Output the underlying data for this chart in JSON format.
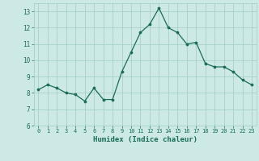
{
  "x": [
    0,
    1,
    2,
    3,
    4,
    5,
    6,
    7,
    8,
    9,
    10,
    11,
    12,
    13,
    14,
    15,
    16,
    17,
    18,
    19,
    20,
    21,
    22,
    23
  ],
  "y": [
    8.2,
    8.5,
    8.3,
    8.0,
    7.9,
    7.5,
    8.3,
    7.6,
    7.6,
    9.3,
    10.5,
    11.7,
    12.2,
    13.2,
    12.0,
    11.7,
    11.0,
    11.1,
    9.8,
    9.6,
    9.6,
    9.3,
    8.8,
    8.5
  ],
  "xlabel": "Humidex (Indice chaleur)",
  "xlim": [
    -0.5,
    23.5
  ],
  "ylim": [
    6,
    13.5
  ],
  "yticks": [
    6,
    7,
    8,
    9,
    10,
    11,
    12,
    13
  ],
  "xticks": [
    0,
    1,
    2,
    3,
    4,
    5,
    6,
    7,
    8,
    9,
    10,
    11,
    12,
    13,
    14,
    15,
    16,
    17,
    18,
    19,
    20,
    21,
    22,
    23
  ],
  "line_color": "#1a6b5a",
  "marker_color": "#1a6b5a",
  "bg_color": "#cce9e5",
  "grid_color": "#a0ccc8",
  "tick_label_color": "#1a6b5a",
  "axis_label_color": "#1a6b5a"
}
